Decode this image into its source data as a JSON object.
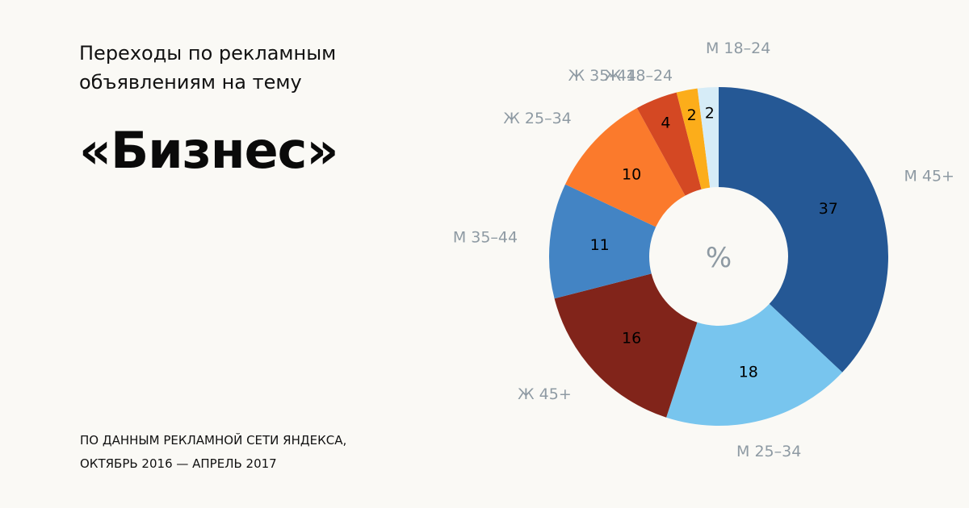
{
  "header": {
    "subtitle_line1": "Переходы по рекламным",
    "subtitle_line2": "объявлениям на тему",
    "title": "«Бизнес»"
  },
  "footer": {
    "source_line1": "ПО ДАННЫМ РЕКЛАМНОЙ СЕТИ ЯНДЕКСА,",
    "source_line2": "ОКТЯБРЬ 2016 — АПРЕЛЬ 2017"
  },
  "chart_data": {
    "type": "pie",
    "center_label": "%",
    "slices": [
      {
        "label": "М 45+",
        "value": 37,
        "color": "#255895"
      },
      {
        "label": "М 25–34",
        "value": 18,
        "color": "#78c5ee"
      },
      {
        "label": "Ж 45+",
        "value": 16,
        "color": "#81241a"
      },
      {
        "label": "М 35–44",
        "value": 11,
        "color": "#4384c4"
      },
      {
        "label": "Ж 25–34",
        "value": 10,
        "color": "#fb7a2c"
      },
      {
        "label": "Ж 35–44",
        "value": 4,
        "color": "#d44823"
      },
      {
        "label": "Ж 18–24",
        "value": 2,
        "color": "#fcad1a"
      },
      {
        "label": "М 18–24",
        "value": 2,
        "color": "#d6ecf7"
      }
    ]
  }
}
